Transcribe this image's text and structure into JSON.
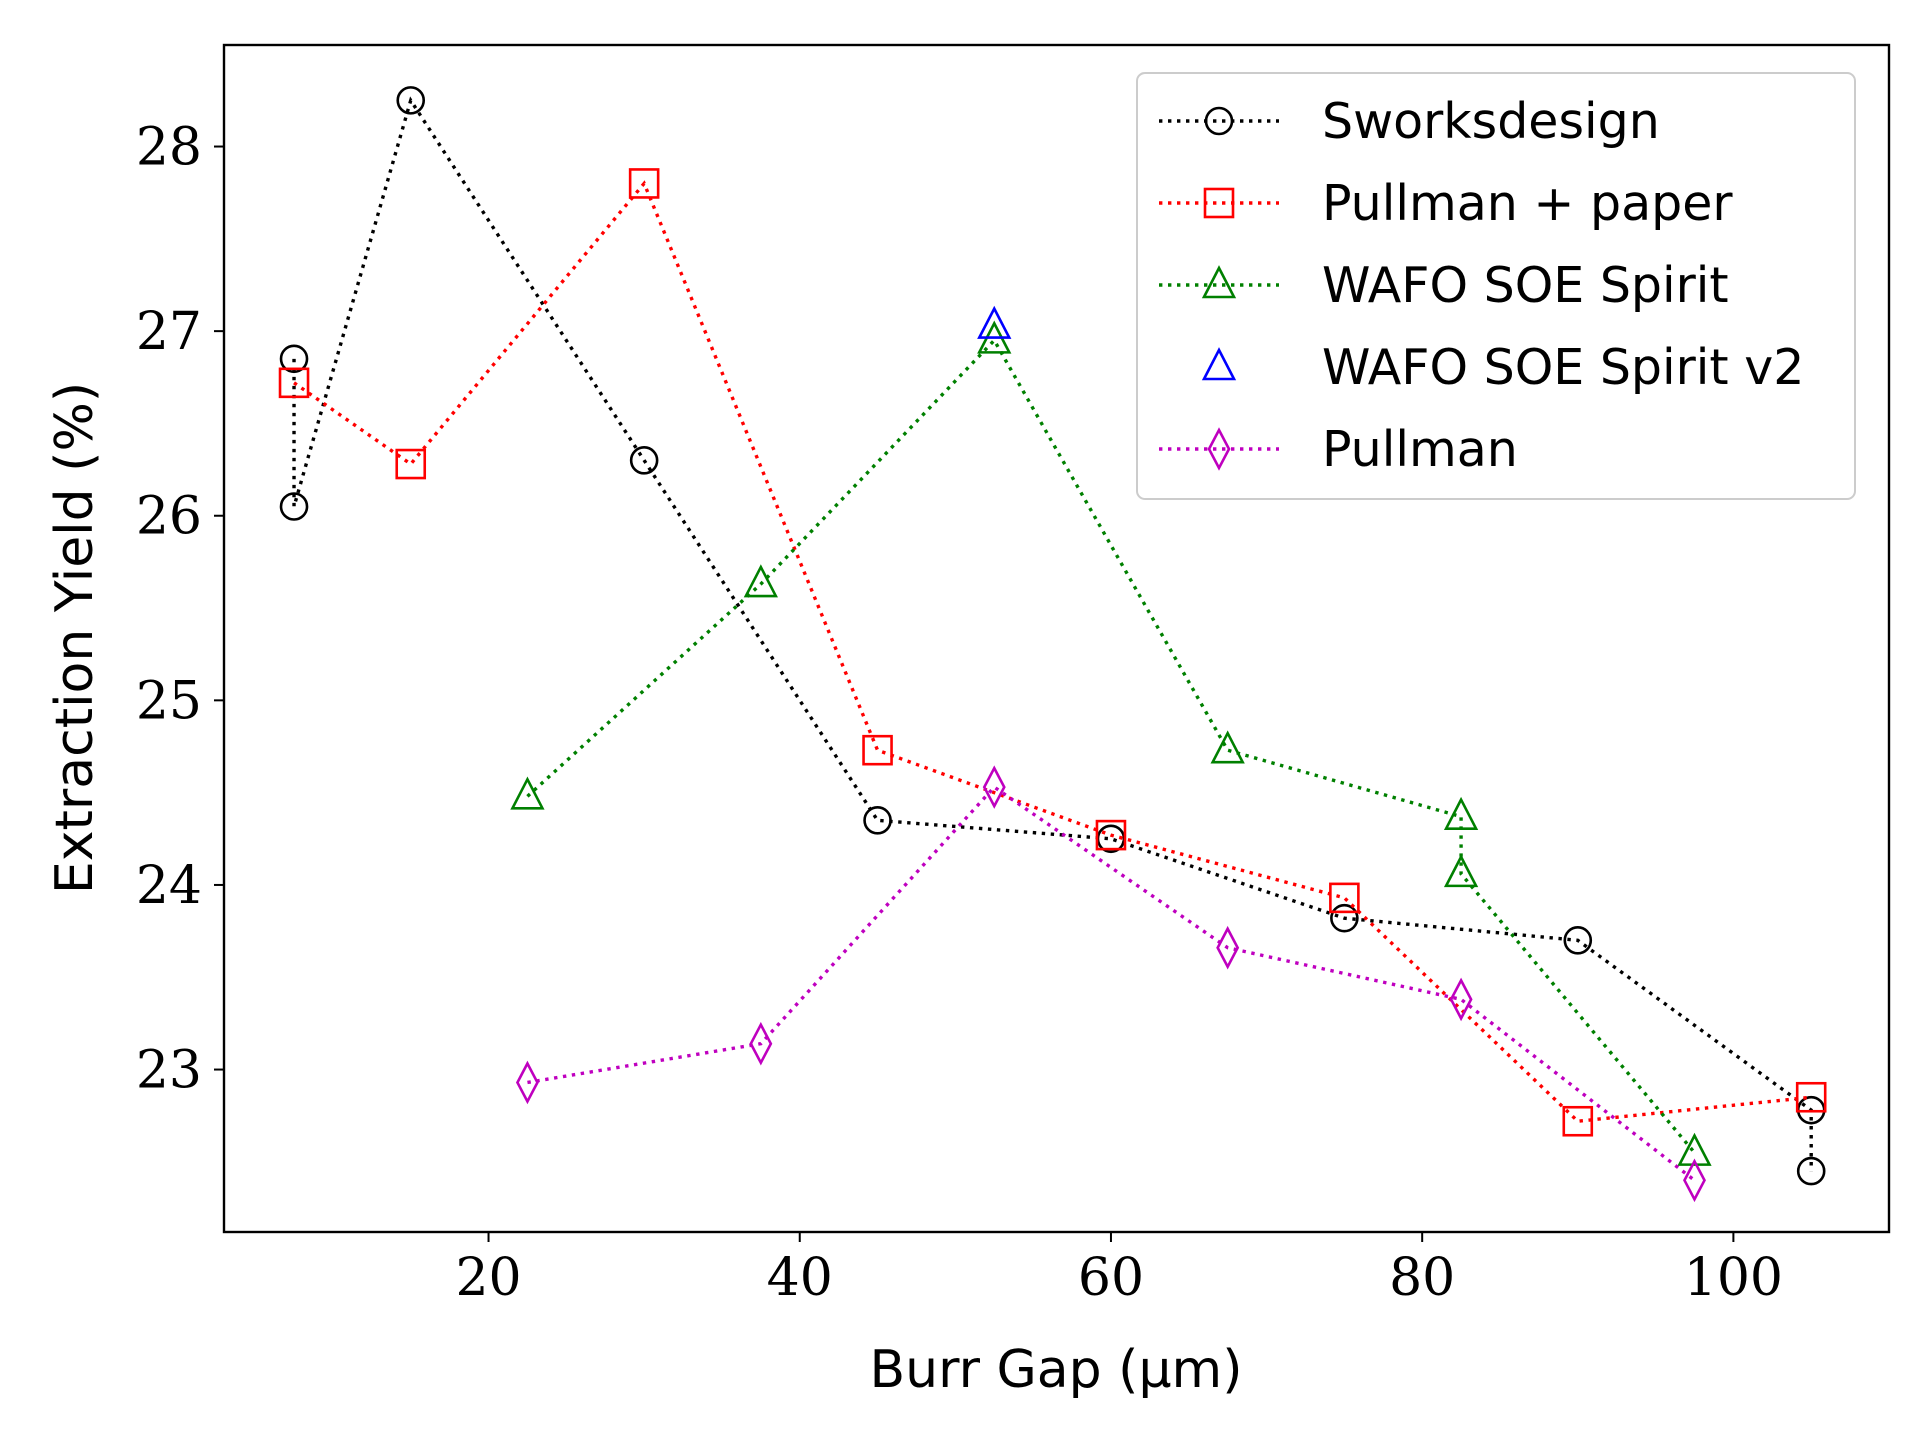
{
  "chart_data": {
    "type": "line",
    "xlabel": "Burr Gap (μm)",
    "ylabel": "Extraction Yield (%)",
    "xlim": [
      3,
      110
    ],
    "ylim": [
      22.12,
      28.55
    ],
    "xticks": [
      20,
      40,
      60,
      80,
      100
    ],
    "yticks": [
      23,
      24,
      25,
      26,
      27,
      28
    ],
    "grid": false,
    "legend_position": "top-right",
    "series": [
      {
        "name": "Sworksdesign",
        "color": "#000000",
        "marker": "circle",
        "linestyle": "dotted",
        "points": [
          [
            7.5,
            26.85
          ],
          [
            7.5,
            26.05
          ],
          [
            15,
            28.25
          ],
          [
            30,
            26.3
          ],
          [
            45,
            24.35
          ],
          [
            60,
            24.25
          ],
          [
            75,
            23.82
          ],
          [
            90,
            23.7
          ],
          [
            105,
            22.78
          ],
          [
            105,
            22.45
          ]
        ]
      },
      {
        "name": "Pullman + paper",
        "color": "#ff0000",
        "marker": "square",
        "linestyle": "dotted",
        "points": [
          [
            7.5,
            26.72
          ],
          [
            15,
            26.28
          ],
          [
            30,
            27.8
          ],
          [
            45,
            24.73
          ],
          [
            60,
            24.27
          ],
          [
            75,
            23.93
          ],
          [
            90,
            22.72
          ],
          [
            105,
            22.85
          ]
        ]
      },
      {
        "name": "WAFO SOE Spirit",
        "color": "#008000",
        "marker": "triangle",
        "linestyle": "dotted",
        "points": [
          [
            22.5,
            24.48
          ],
          [
            37.5,
            25.63
          ],
          [
            52.5,
            26.95
          ],
          [
            67.5,
            24.73
          ],
          [
            82.5,
            24.37
          ],
          [
            82.5,
            24.06
          ],
          [
            97.5,
            22.55
          ]
        ]
      },
      {
        "name": "WAFO SOE Spirit v2",
        "color": "#0000ff",
        "marker": "triangle",
        "linestyle": "none",
        "points": [
          [
            52.5,
            27.03
          ]
        ]
      },
      {
        "name": "Pullman",
        "color": "#bf00bf",
        "marker": "diamond",
        "linestyle": "dotted",
        "points": [
          [
            22.5,
            22.93
          ],
          [
            37.5,
            23.14
          ],
          [
            52.5,
            24.53
          ],
          [
            67.5,
            23.66
          ],
          [
            82.5,
            23.38
          ],
          [
            97.5,
            22.4
          ]
        ]
      }
    ]
  }
}
